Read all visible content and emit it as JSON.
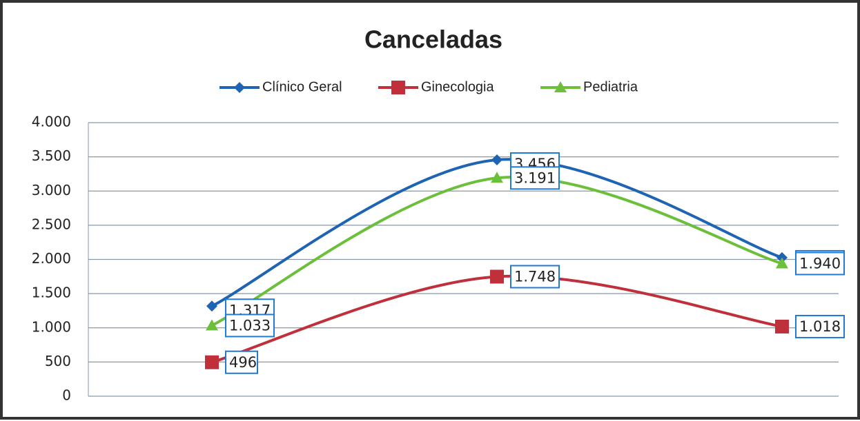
{
  "chart_data": {
    "type": "line",
    "title": "Canceladas",
    "categories": [
      null,
      null,
      null
    ],
    "series": [
      {
        "name": "Clínico Geral",
        "color": "#1f64b4",
        "marker": "diamond",
        "values": [
          1317,
          3456,
          2026
        ],
        "value_labels": [
          "1.317",
          "3.456",
          "2.026"
        ]
      },
      {
        "name": "Ginecologia",
        "color": "#c0303a",
        "marker": "square",
        "values": [
          496,
          1748,
          1018
        ],
        "value_labels": [
          "496",
          "1.748",
          "1.018"
        ]
      },
      {
        "name": "Pediatria",
        "color": "#6cbf3a",
        "marker": "triangle",
        "values": [
          1033,
          3191,
          1940
        ],
        "value_labels": [
          "1.033",
          "3.191",
          "1.940"
        ]
      }
    ],
    "ylim": [
      0,
      4000
    ],
    "yticks": [
      0,
      500,
      {
        "value": 1000,
        "label": "1.000"
      },
      {
        "value": 1500,
        "label": "1.500"
      },
      {
        "value": 2000,
        "label": "2.000"
      },
      {
        "value": 2500,
        "label": "2.500"
      },
      {
        "value": 3000,
        "label": "3.000"
      },
      {
        "value": 3500,
        "label": "3.500"
      },
      {
        "value": 4000,
        "label": "4.000"
      }
    ],
    "grid": true,
    "legend": "top",
    "smooth": true
  }
}
